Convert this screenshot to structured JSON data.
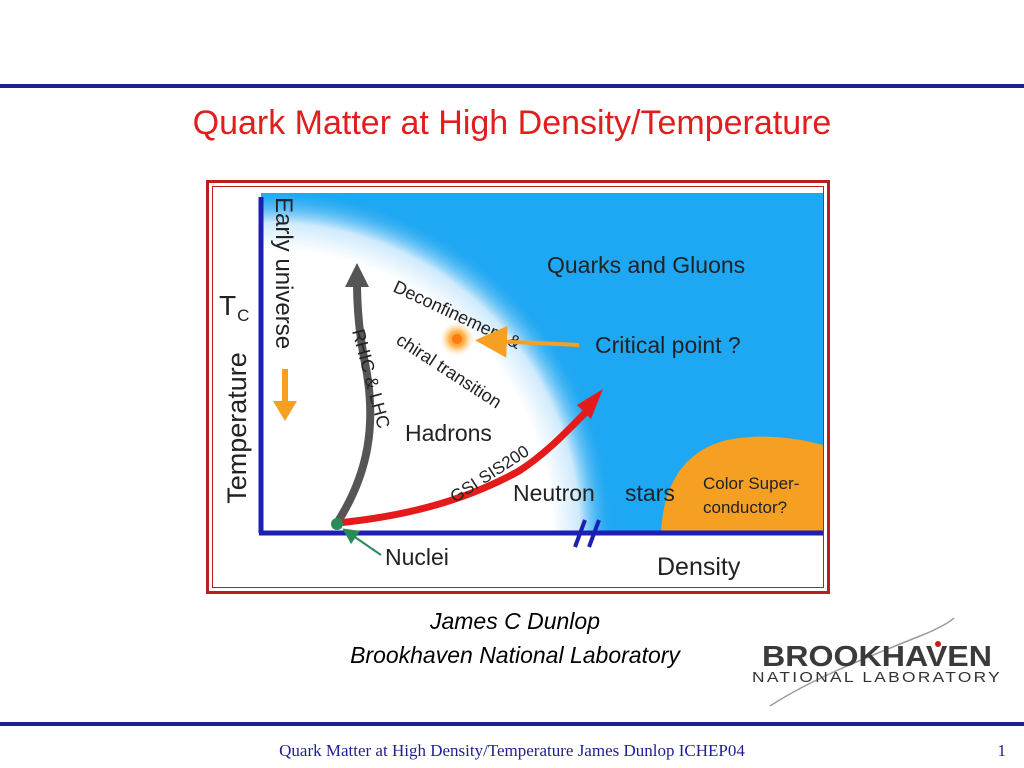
{
  "slide": {
    "title": "Quark Matter at High Density/Temperature",
    "author": "James C Dunlop",
    "affiliation": "Brookhaven National Laboratory",
    "footer": "Quark Matter at High Density/Temperature James Dunlop ICHEP04",
    "page_number": "1"
  },
  "logo": {
    "line1": "BROOKHAVEN",
    "line2": "NATIONAL LABORATORY"
  },
  "diagram": {
    "y_axis_label": "Temperature",
    "tc_label": "T",
    "tc_subscript": "C",
    "x_axis_label": "Density",
    "regions": {
      "quarks_gluons": "Quarks and Gluons",
      "hadrons": "Hadrons",
      "neutron_stars_1": "Neutron",
      "neutron_stars_2": "stars",
      "color_sc_1": "Color Super-",
      "color_sc_2": "conductor?",
      "nuclei": "Nuclei"
    },
    "annotations": {
      "early_universe": "Early universe",
      "rhic_lhc": "RHIC & LHC",
      "gsi": "GSI SIS200",
      "deconf_1": "Deconfinement &",
      "deconf_2": "chiral transition",
      "critical_point": "Critical point ?"
    },
    "colors": {
      "qgp_blue": "#1ea7f2",
      "axis_navy": "#1e1eb4",
      "orange": "#f5a023",
      "rhic_arrow": "#555555",
      "gsi_arrow": "#e31b1b",
      "nuclei_dot": "#2a8a5a"
    }
  }
}
